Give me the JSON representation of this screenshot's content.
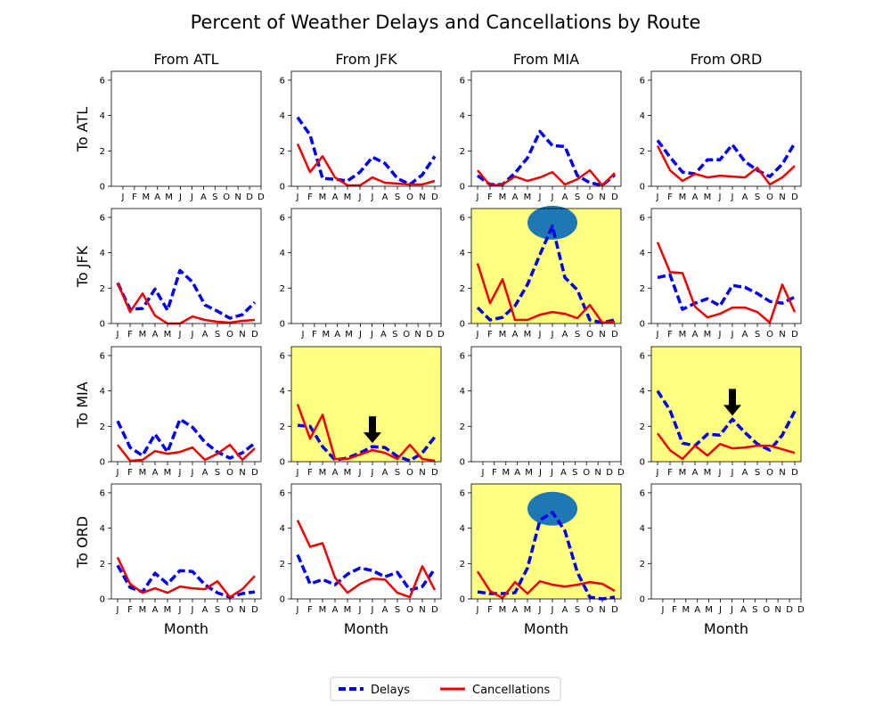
{
  "chart_data": {
    "type": "line",
    "title": "Percent of Weather Delays and Cancellations by Route",
    "xlabel": "Month",
    "row_labels": [
      "To ATL",
      "To JFK",
      "To MIA",
      "To ORD"
    ],
    "col_labels": [
      "From ATL",
      "From JFK",
      "From MIA",
      "From ORD"
    ],
    "x_ticks": [
      "J",
      "F",
      "M",
      "A",
      "M",
      "J",
      "J",
      "A",
      "S",
      "O",
      "N",
      "D"
    ],
    "y_ticks": [
      "0",
      "2",
      "4",
      "6"
    ],
    "ylim": [
      0,
      6.5
    ],
    "legend": {
      "placement": "bottom-center",
      "entries": [
        "Delays",
        "Cancellations"
      ]
    },
    "colors": {
      "delays": "#0000ee",
      "cancellations": "#ee0000",
      "highlight": "#ffff80",
      "circle": "#1f77b4",
      "arrow": "#000000"
    },
    "panels": [
      {
        "row": 0,
        "col": 0,
        "empty": true
      },
      {
        "row": 0,
        "col": 1,
        "delays": [
          3.9,
          2.9,
          0.45,
          0.4,
          0.3,
          0.8,
          1.65,
          1.3,
          0.45,
          0.1,
          0.65,
          1.7
        ],
        "cancellations": [
          2.4,
          0.8,
          1.7,
          0.5,
          0.05,
          0.05,
          0.5,
          0.2,
          0.15,
          0.1,
          0.1,
          0.3
        ]
      },
      {
        "row": 0,
        "col": 2,
        "delays": [
          0.6,
          0.1,
          0.1,
          0.75,
          1.6,
          3.1,
          2.3,
          2.25,
          0.6,
          0.2,
          0.05,
          0.65
        ],
        "cancellations": [
          0.9,
          0.05,
          0.1,
          0.55,
          0.3,
          0.5,
          0.8,
          0.1,
          0.4,
          0.9,
          0.05,
          0.75
        ]
      },
      {
        "row": 0,
        "col": 3,
        "delays": [
          2.6,
          1.65,
          0.8,
          0.7,
          1.5,
          1.5,
          2.35,
          1.4,
          0.9,
          0.55,
          1.25,
          2.45
        ],
        "cancellations": [
          2.3,
          0.9,
          0.3,
          0.7,
          0.5,
          0.6,
          0.55,
          0.5,
          1.05,
          0.1,
          0.5,
          1.15
        ]
      },
      {
        "row": 1,
        "col": 0,
        "delays": [
          2.3,
          0.8,
          0.85,
          1.95,
          0.75,
          3.0,
          2.35,
          1.05,
          0.7,
          0.3,
          0.5,
          1.2
        ],
        "cancellations": [
          2.3,
          0.65,
          1.7,
          0.45,
          0.0,
          0.0,
          0.4,
          0.2,
          0.1,
          0.05,
          0.15,
          0.2
        ]
      },
      {
        "row": 1,
        "col": 1,
        "empty": true
      },
      {
        "row": 1,
        "col": 2,
        "highlight": true,
        "marker": "circle",
        "delays": [
          0.9,
          0.2,
          0.35,
          1.0,
          2.2,
          3.9,
          5.5,
          2.6,
          1.9,
          0.2,
          0.05,
          0.2
        ],
        "cancellations": [
          3.4,
          1.15,
          2.5,
          0.2,
          0.2,
          0.5,
          0.65,
          0.55,
          0.3,
          1.05,
          0.05,
          0.1
        ]
      },
      {
        "row": 1,
        "col": 3,
        "delays": [
          2.6,
          2.75,
          0.8,
          1.15,
          1.4,
          1.0,
          2.15,
          2.05,
          1.7,
          1.25,
          1.15,
          1.5
        ],
        "cancellations": [
          4.6,
          2.9,
          2.85,
          0.95,
          0.35,
          0.55,
          0.9,
          0.9,
          0.65,
          0.05,
          2.2,
          0.65
        ]
      },
      {
        "row": 2,
        "col": 0,
        "delays": [
          2.3,
          0.8,
          0.35,
          1.55,
          0.55,
          2.4,
          1.95,
          1.1,
          0.55,
          0.2,
          0.5,
          1.05
        ],
        "cancellations": [
          0.95,
          0.05,
          0.1,
          0.6,
          0.45,
          0.55,
          0.8,
          0.1,
          0.45,
          0.95,
          0.1,
          0.75
        ]
      },
      {
        "row": 2,
        "col": 1,
        "highlight": true,
        "marker": "arrow",
        "arrow_at": 6,
        "delays": [
          2.05,
          2.0,
          0.85,
          0.1,
          0.2,
          0.5,
          0.85,
          0.8,
          0.3,
          0.05,
          0.5,
          1.4
        ],
        "cancellations": [
          3.25,
          1.3,
          2.65,
          0.15,
          0.15,
          0.4,
          0.65,
          0.5,
          0.15,
          0.95,
          0.15,
          0.05
        ]
      },
      {
        "row": 2,
        "col": 2,
        "empty": true
      },
      {
        "row": 2,
        "col": 3,
        "highlight": true,
        "marker": "arrow",
        "arrow_at": 6,
        "delays": [
          4.0,
          2.9,
          1.05,
          0.9,
          1.55,
          1.5,
          2.4,
          1.65,
          1.0,
          0.65,
          1.5,
          2.85
        ],
        "cancellations": [
          1.6,
          0.65,
          0.15,
          0.9,
          0.35,
          1.0,
          0.75,
          0.8,
          0.9,
          0.9,
          0.7,
          0.5
        ]
      },
      {
        "row": 3,
        "col": 0,
        "delays": [
          1.9,
          0.65,
          0.4,
          1.45,
          0.85,
          1.6,
          1.55,
          0.8,
          0.35,
          0.1,
          0.3,
          0.4
        ],
        "cancellations": [
          2.35,
          0.85,
          0.35,
          0.6,
          0.35,
          0.7,
          0.6,
          0.55,
          1.0,
          0.1,
          0.55,
          1.3
        ]
      },
      {
        "row": 3,
        "col": 1,
        "delays": [
          2.5,
          0.85,
          1.1,
          0.8,
          1.4,
          1.75,
          1.6,
          1.25,
          1.5,
          0.5,
          0.7,
          1.7
        ],
        "cancellations": [
          4.45,
          2.95,
          3.15,
          1.2,
          0.35,
          0.85,
          1.15,
          1.1,
          0.35,
          0.1,
          1.85,
          0.5
        ]
      },
      {
        "row": 3,
        "col": 2,
        "highlight": true,
        "marker": "circle",
        "delays": [
          0.4,
          0.3,
          0.3,
          0.35,
          1.75,
          4.45,
          4.9,
          3.85,
          1.5,
          0.1,
          0.0,
          0.1
        ],
        "cancellations": [
          1.55,
          0.45,
          0.05,
          0.95,
          0.3,
          1.0,
          0.8,
          0.7,
          0.8,
          0.95,
          0.85,
          0.45
        ]
      },
      {
        "row": 3,
        "col": 3,
        "empty": true
      }
    ]
  }
}
